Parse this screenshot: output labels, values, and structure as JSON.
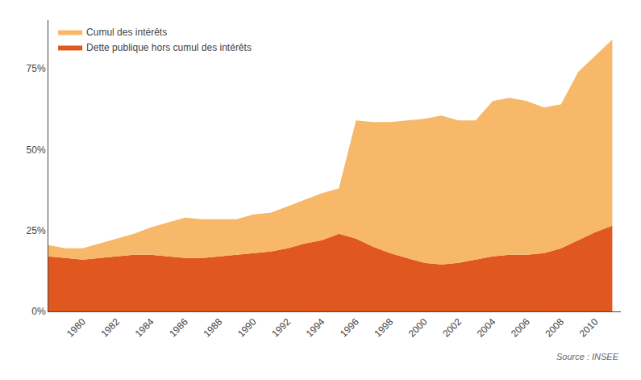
{
  "chart_data": {
    "type": "area",
    "stacked": true,
    "x": [
      1978,
      1979,
      1980,
      1981,
      1982,
      1983,
      1984,
      1985,
      1986,
      1987,
      1988,
      1989,
      1990,
      1991,
      1992,
      1993,
      1994,
      1995,
      1996,
      1997,
      1998,
      1999,
      2000,
      2001,
      2002,
      2003,
      2004,
      2005,
      2006,
      2007,
      2008,
      2009,
      2010,
      2011
    ],
    "series": [
      {
        "name": "Dette publique hors cumul des intérêts",
        "color": "#e05820",
        "values": [
          17.0,
          16.5,
          16.0,
          16.5,
          17.0,
          17.5,
          17.5,
          17.0,
          16.5,
          16.5,
          17.0,
          17.5,
          18.0,
          18.5,
          19.5,
          21.0,
          22.0,
          24.0,
          22.5,
          20.0,
          18.0,
          16.5,
          15.0,
          14.5,
          15.0,
          16.0,
          17.0,
          17.5,
          17.5,
          18.0,
          19.5,
          22.0,
          24.5,
          26.5
        ]
      },
      {
        "name": "Cumul des intérêts",
        "color": "#f8b86a",
        "values": [
          3.5,
          3.0,
          3.5,
          4.5,
          5.5,
          6.5,
          8.5,
          10.5,
          12.5,
          12.0,
          11.5,
          11.0,
          12.0,
          12.0,
          13.0,
          13.5,
          14.5,
          14.0,
          36.5,
          38.5,
          40.5,
          42.5,
          44.5,
          46.0,
          44.0,
          43.0,
          48.0,
          48.5,
          47.5,
          45.0,
          44.5,
          52.0,
          54.5,
          57.5
        ]
      }
    ],
    "xlim": [
      1978,
      2011.5
    ],
    "xticks": [
      1980,
      1982,
      1984,
      1986,
      1988,
      1990,
      1992,
      1994,
      1996,
      1998,
      2000,
      2002,
      2004,
      2006,
      2008,
      2010
    ],
    "ylim": [
      0,
      90
    ],
    "yticks": [
      {
        "value": 0,
        "label": "0%"
      },
      {
        "value": 25,
        "label": "25%"
      },
      {
        "value": 50,
        "label": "50%"
      },
      {
        "value": 75,
        "label": "75%"
      }
    ],
    "grid": false,
    "legend": "upper left",
    "annotations": [
      "Source : INSEE"
    ]
  }
}
